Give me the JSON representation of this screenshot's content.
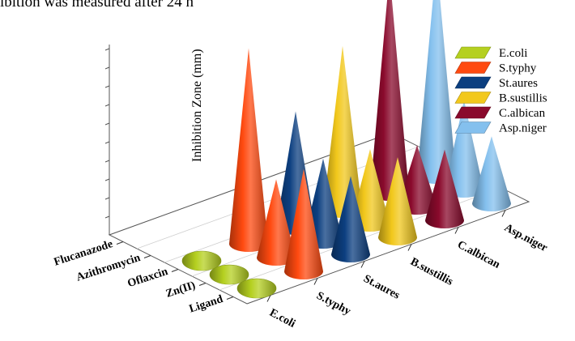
{
  "caption": "ibition was measured after 24 h",
  "chart_data": {
    "type": "bar",
    "style": "3d-cone",
    "categories": [
      "E.coli",
      "S.typhy",
      "St.aures",
      "B.sustillis",
      "C.albican",
      "Asp.niger"
    ],
    "rows": [
      "Ligand",
      "Zn(II)",
      "Oflaxcin",
      "Azithromycin",
      "Flucanazode"
    ],
    "zlabel": "Inhibition Zone (mm)",
    "legend_position": "right",
    "series": [
      {
        "name": "E.coli",
        "color": "#b5d020"
      },
      {
        "name": "S.typhy",
        "color": "#ff4a10"
      },
      {
        "name": "St.aures",
        "color": "#0c3f80"
      },
      {
        "name": "B.sustillis",
        "color": "#f2c81c"
      },
      {
        "name": "C.albican",
        "color": "#8a0a2c"
      },
      {
        "name": "Asp.niger",
        "color": "#84c0ee"
      }
    ],
    "cones": [
      {
        "row": "Ligand",
        "category": "E.coli",
        "value": 0.5
      },
      {
        "row": "Ligand",
        "category": "S.typhy",
        "value": 5.5
      },
      {
        "row": "Ligand",
        "category": "St.aures",
        "value": 4.2
      },
      {
        "row": "Ligand",
        "category": "B.sustillis",
        "value": 4.3
      },
      {
        "row": "Ligand",
        "category": "C.albican",
        "value": 3.8
      },
      {
        "row": "Ligand",
        "category": "Asp.niger",
        "value": 3.6
      },
      {
        "row": "Zn(II)",
        "category": "E.coli",
        "value": 0.5
      },
      {
        "row": "Zn(II)",
        "category": "S.typhy",
        "value": 4.2
      },
      {
        "row": "Zn(II)",
        "category": "St.aures",
        "value": 4.4
      },
      {
        "row": "Zn(II)",
        "category": "B.sustillis",
        "value": 4.0
      },
      {
        "row": "Zn(II)",
        "category": "C.albican",
        "value": 3.3
      },
      {
        "row": "Zn(II)",
        "category": "Asp.niger",
        "value": 4.8
      },
      {
        "row": "Oflaxcin",
        "category": "E.coli",
        "value": 0.5
      },
      {
        "row": "Oflaxcin",
        "category": "S.typhy",
        "value": 10.5
      },
      {
        "row": "Oflaxcin",
        "category": "St.aures",
        "value": 6.2
      },
      {
        "row": "Oflaxcin",
        "category": "B.sustillis",
        "value": 8.8
      },
      {
        "row": "Oflaxcin",
        "category": "C.albican",
        "value": 11.8
      },
      {
        "row": "Oflaxcin",
        "category": "Asp.niger",
        "value": 11.6
      }
    ]
  }
}
